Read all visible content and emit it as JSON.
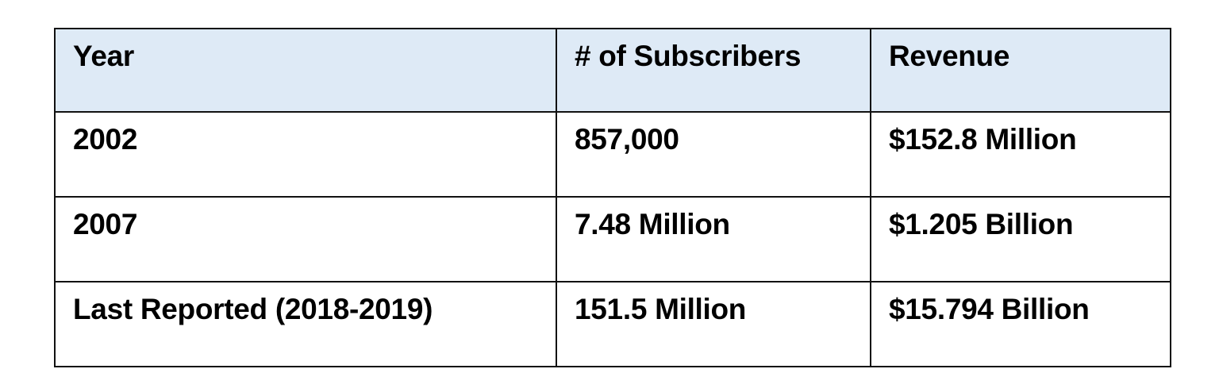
{
  "table": {
    "columns": [
      "Year",
      "# of Subscribers",
      "Revenue"
    ],
    "rows": [
      [
        "2002",
        "857,000",
        "$152.8 Million"
      ],
      [
        "2007",
        "7.48 Million",
        "$1.205 Billion"
      ],
      [
        "Last Reported (2018-2019)",
        "151.5 Million",
        "$15.794 Billion"
      ]
    ]
  },
  "colors": {
    "header_background": "#deeaf6",
    "border": "#111111",
    "text": "#000000"
  }
}
